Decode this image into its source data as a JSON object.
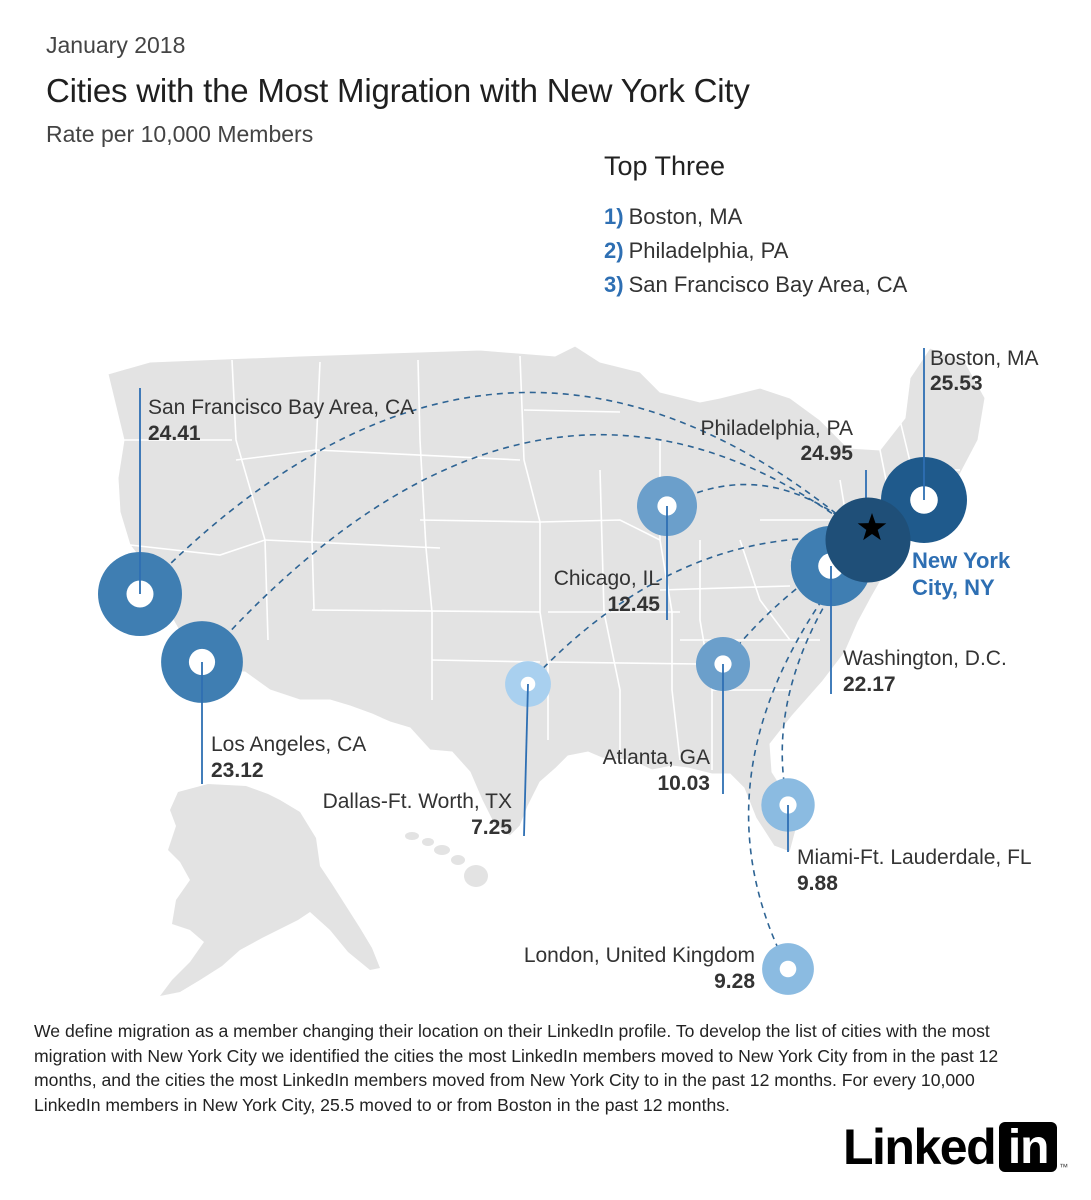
{
  "header": {
    "date": "January 2018",
    "title": "Cities with the Most Migration with New York City",
    "subtitle": "Rate per 10,000 Members"
  },
  "top_three": {
    "heading": "Top Three",
    "items": [
      {
        "rank": "1)",
        "city": "Boston, MA"
      },
      {
        "rank": "2)",
        "city": "Philadelphia, PA"
      },
      {
        "rank": "3)",
        "city": "San Francisco Bay Area, CA"
      }
    ]
  },
  "hub": {
    "name_line1": "New York",
    "name_line2": "City, NY",
    "marker": "star-icon"
  },
  "cities": [
    {
      "name": "Boston, MA",
      "value": 25.53
    },
    {
      "name": "Philadelphia, PA",
      "value": 24.95
    },
    {
      "name": "San Francisco Bay Area, CA",
      "value": 24.41
    },
    {
      "name": "Los Angeles, CA",
      "value": 23.12
    },
    {
      "name": "Washington, D.C.",
      "value": 22.17
    },
    {
      "name": "Chicago, IL",
      "value": 12.45
    },
    {
      "name": "Atlanta, GA",
      "value": 10.03
    },
    {
      "name": "Miami-Ft. Lauderdale, FL",
      "value": 9.88
    },
    {
      "name": "London, United Kingdom",
      "value": 9.28
    },
    {
      "name": "Dallas-Ft. Worth, TX",
      "value": 7.25
    }
  ],
  "footnote": "We define migration as a member changing their location on their LinkedIn profile. To develop the list of cities with the most migration with New York City we identified the cities the most LinkedIn members moved to New York City from in the past 12 months, and the cities the most LinkedIn members moved from New York City to in the past 12 months. For every 10,000 LinkedIn members in New York City, 25.5 moved to or from Boston in the past 12 months.",
  "logo": {
    "text": "Linked",
    "box_text": "in",
    "tm": "™"
  },
  "colors": {
    "land": "#e3e3e3",
    "border": "#ffffff",
    "hub_blue": "#2e6fb3",
    "high": "#1f5a8c",
    "mid": "#3f7eb2",
    "low_mid": "#6b9fcb",
    "low": "#8bbbe1",
    "lowest": "#a9d0ef",
    "route_line": "#2e6494"
  }
}
